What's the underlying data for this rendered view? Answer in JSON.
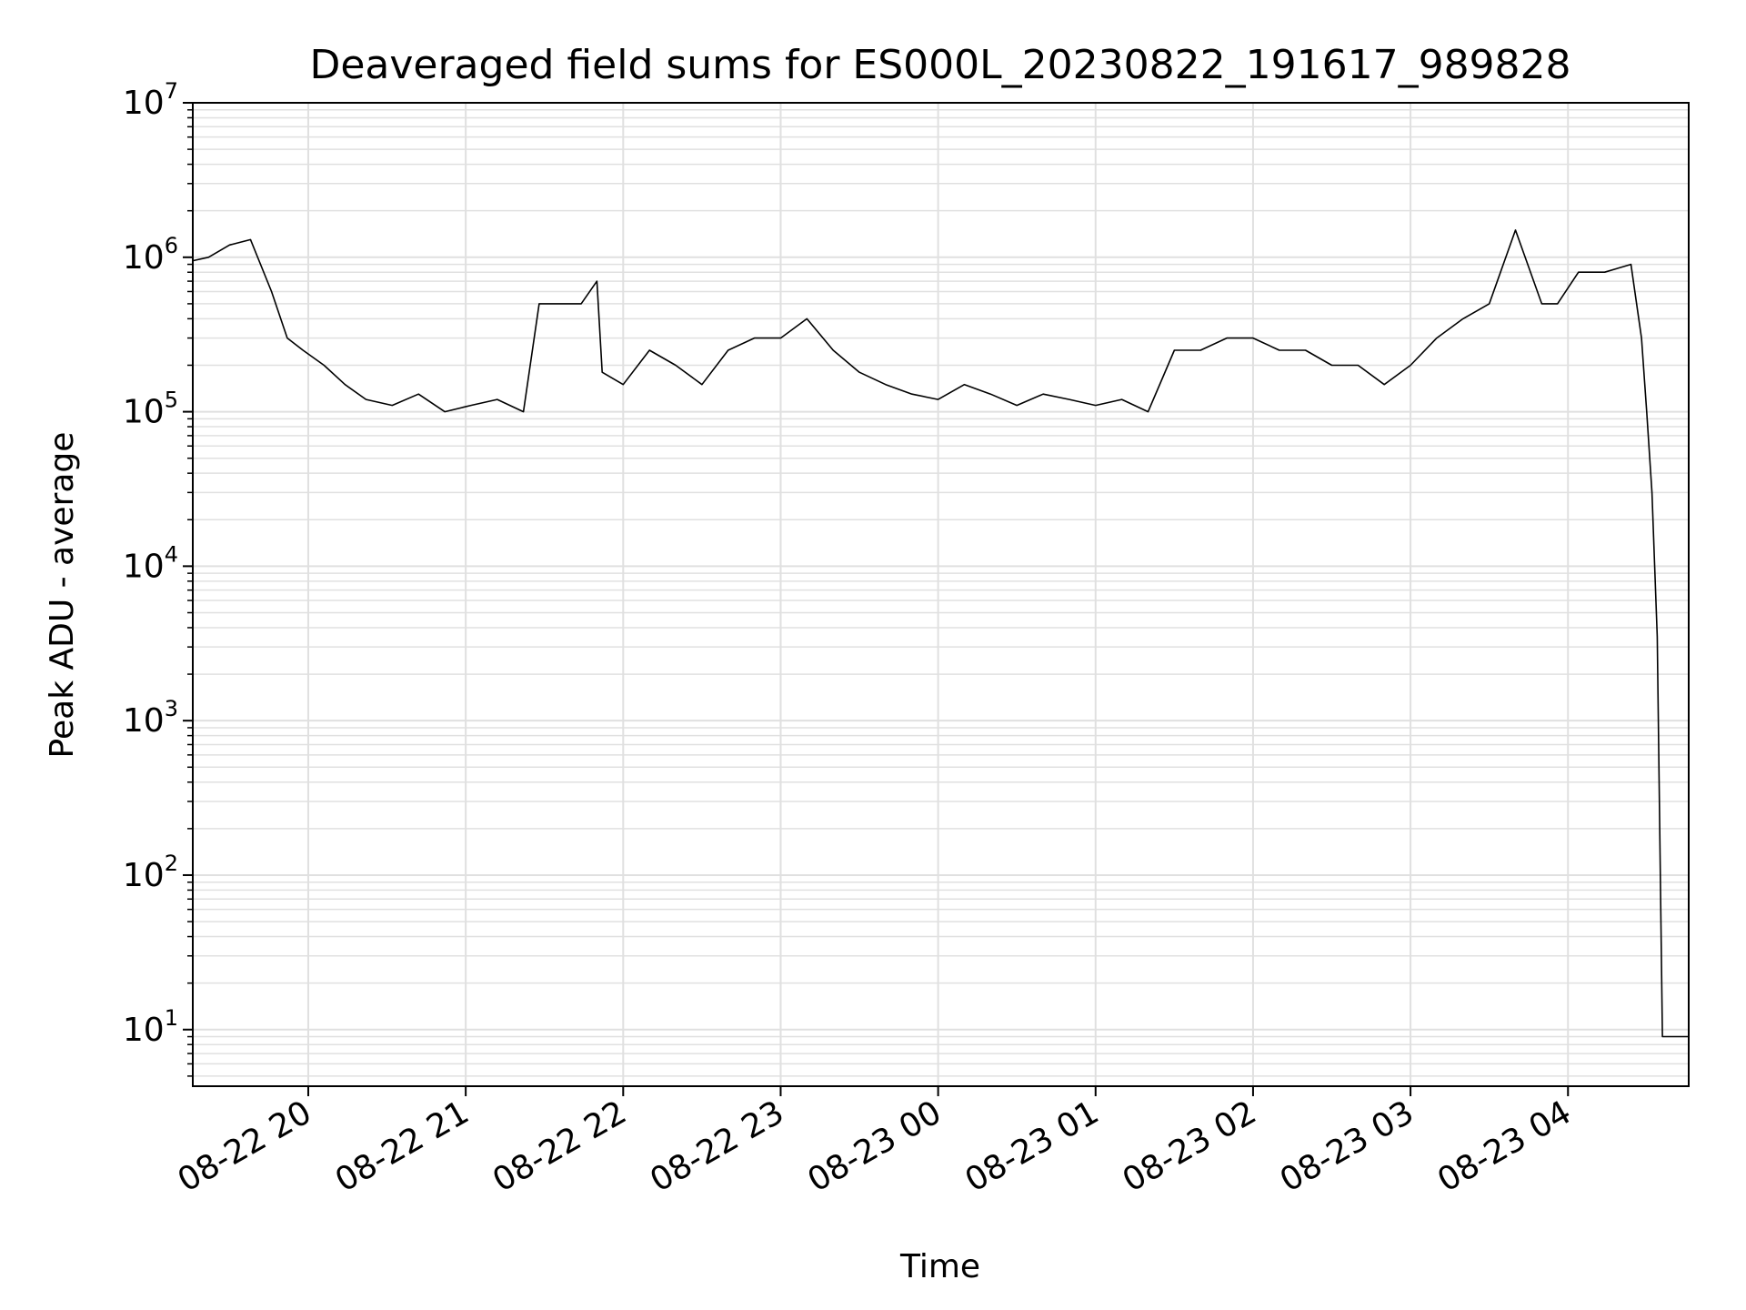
{
  "chart_data": {
    "type": "line",
    "title": "Deaveraged field sums for ES000L_20230822_191617_989828",
    "xlabel": "Time",
    "ylabel": "Peak ADU - average",
    "yscale": "log",
    "ylim": [
      4.3,
      10000000
    ],
    "xlim": [
      "2023-08-22 19:16",
      "2023-08-23 04:46"
    ],
    "grid": true,
    "line_color": "#000000",
    "grid_color": "#e0e0e0",
    "x_ticks": [
      {
        "value": "2023-08-22 20:00",
        "label": "08-22 20"
      },
      {
        "value": "2023-08-22 21:00",
        "label": "08-22 21"
      },
      {
        "value": "2023-08-22 22:00",
        "label": "08-22 22"
      },
      {
        "value": "2023-08-22 23:00",
        "label": "08-22 23"
      },
      {
        "value": "2023-08-23 00:00",
        "label": "08-23 00"
      },
      {
        "value": "2023-08-23 01:00",
        "label": "08-23 01"
      },
      {
        "value": "2023-08-23 02:00",
        "label": "08-23 02"
      },
      {
        "value": "2023-08-23 03:00",
        "label": "08-23 03"
      },
      {
        "value": "2023-08-23 04:00",
        "label": "08-23 04"
      }
    ],
    "y_ticks": [
      {
        "value": 10,
        "base": "10",
        "exp": "1"
      },
      {
        "value": 100,
        "base": "10",
        "exp": "2"
      },
      {
        "value": 1000,
        "base": "10",
        "exp": "3"
      },
      {
        "value": 10000,
        "base": "10",
        "exp": "4"
      },
      {
        "value": 100000,
        "base": "10",
        "exp": "5"
      },
      {
        "value": 1000000,
        "base": "10",
        "exp": "6"
      },
      {
        "value": 10000000,
        "base": "10",
        "exp": "7"
      }
    ],
    "series": [
      {
        "x": [
          "2023-08-22 19:16",
          "2023-08-22 19:22",
          "2023-08-22 19:30",
          "2023-08-22 19:38",
          "2023-08-22 19:46",
          "2023-08-22 19:52",
          "2023-08-22 19:58",
          "2023-08-22 20:06",
          "2023-08-22 20:14",
          "2023-08-22 20:22",
          "2023-08-22 20:32",
          "2023-08-22 20:42",
          "2023-08-22 20:52",
          "2023-08-22 21:02",
          "2023-08-22 21:12",
          "2023-08-22 21:22",
          "2023-08-22 21:28",
          "2023-08-22 21:36",
          "2023-08-22 21:44",
          "2023-08-22 21:50",
          "2023-08-22 21:52",
          "2023-08-22 22:00",
          "2023-08-22 22:10",
          "2023-08-22 22:20",
          "2023-08-22 22:30",
          "2023-08-22 22:40",
          "2023-08-22 22:50",
          "2023-08-22 23:00",
          "2023-08-22 23:10",
          "2023-08-22 23:20",
          "2023-08-22 23:30",
          "2023-08-22 23:40",
          "2023-08-22 23:50",
          "2023-08-23 00:00",
          "2023-08-23 00:10",
          "2023-08-23 00:20",
          "2023-08-23 00:30",
          "2023-08-23 00:40",
          "2023-08-23 00:50",
          "2023-08-23 01:00",
          "2023-08-23 01:10",
          "2023-08-23 01:20",
          "2023-08-23 01:30",
          "2023-08-23 01:40",
          "2023-08-23 01:50",
          "2023-08-23 02:00",
          "2023-08-23 02:10",
          "2023-08-23 02:20",
          "2023-08-23 02:30",
          "2023-08-23 02:40",
          "2023-08-23 02:50",
          "2023-08-23 03:00",
          "2023-08-23 03:10",
          "2023-08-23 03:20",
          "2023-08-23 03:30",
          "2023-08-23 03:40",
          "2023-08-23 03:50",
          "2023-08-23 03:56",
          "2023-08-23 04:04",
          "2023-08-23 04:14",
          "2023-08-23 04:24",
          "2023-08-23 04:28",
          "2023-08-23 04:30",
          "2023-08-23 04:32",
          "2023-08-23 04:34",
          "2023-08-23 04:36",
          "2023-08-23 04:37",
          "2023-08-23 04:46"
        ],
        "y": [
          950000,
          1000000,
          1200000,
          1300000,
          600000,
          300000,
          250000,
          200000,
          150000,
          120000,
          110000,
          130000,
          100000,
          110000,
          120000,
          100000,
          500000,
          500000,
          500000,
          700000,
          180000,
          150000,
          250000,
          200000,
          150000,
          250000,
          300000,
          300000,
          400000,
          250000,
          180000,
          150000,
          130000,
          120000,
          150000,
          130000,
          110000,
          130000,
          120000,
          110000,
          120000,
          100000,
          250000,
          250000,
          300000,
          300000,
          250000,
          250000,
          200000,
          200000,
          150000,
          200000,
          300000,
          400000,
          500000,
          1500000,
          500000,
          500000,
          800000,
          800000,
          900000,
          300000,
          100000,
          30000,
          3500,
          9,
          9,
          9
        ]
      }
    ]
  }
}
